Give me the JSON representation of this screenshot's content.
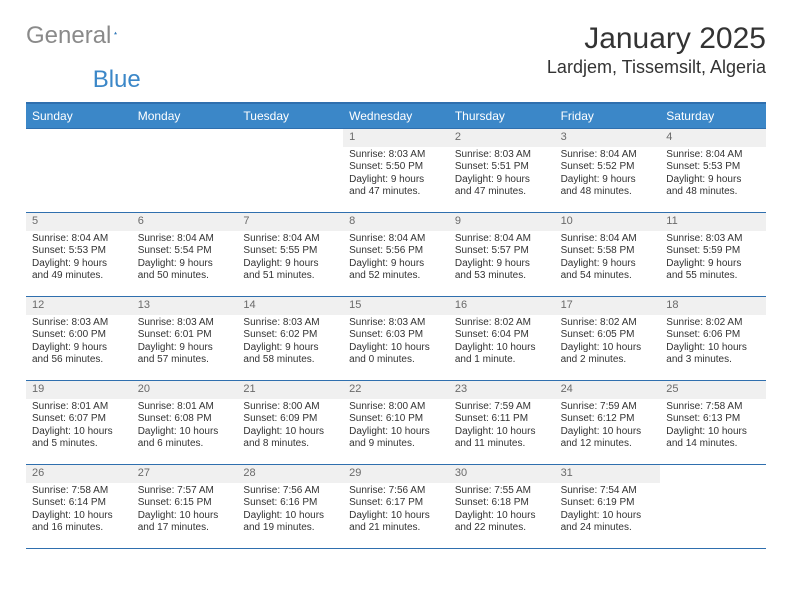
{
  "logo": {
    "word1": "General",
    "word2": "Blue"
  },
  "header": {
    "month": "January 2025",
    "location": "Lardjem, Tissemsilt, Algeria"
  },
  "dayNames": [
    "Sunday",
    "Monday",
    "Tuesday",
    "Wednesday",
    "Thursday",
    "Friday",
    "Saturday"
  ],
  "colors": {
    "header_bg": "#3b87c8",
    "header_text": "#ffffff",
    "rule": "#2f6fae",
    "numrow_bg": "#f0f0f0",
    "numrow_text": "#6a6a6a",
    "body_text": "#333333",
    "page_bg": "#ffffff"
  },
  "typography": {
    "title_fontsize_pt": 22,
    "location_fontsize_pt": 14,
    "dayname_fontsize_pt": 9,
    "cell_fontsize_pt": 7.5
  },
  "layout": {
    "cols": 7,
    "rows": 5,
    "first_day_col_index": 3
  },
  "weeks": [
    [
      {
        "empty": true
      },
      {
        "empty": true
      },
      {
        "empty": true
      },
      {
        "num": "1",
        "sunrise": "Sunrise: 8:03 AM",
        "sunset": "Sunset: 5:50 PM",
        "daylight": "Daylight: 9 hours and 47 minutes."
      },
      {
        "num": "2",
        "sunrise": "Sunrise: 8:03 AM",
        "sunset": "Sunset: 5:51 PM",
        "daylight": "Daylight: 9 hours and 47 minutes."
      },
      {
        "num": "3",
        "sunrise": "Sunrise: 8:04 AM",
        "sunset": "Sunset: 5:52 PM",
        "daylight": "Daylight: 9 hours and 48 minutes."
      },
      {
        "num": "4",
        "sunrise": "Sunrise: 8:04 AM",
        "sunset": "Sunset: 5:53 PM",
        "daylight": "Daylight: 9 hours and 48 minutes."
      }
    ],
    [
      {
        "num": "5",
        "sunrise": "Sunrise: 8:04 AM",
        "sunset": "Sunset: 5:53 PM",
        "daylight": "Daylight: 9 hours and 49 minutes."
      },
      {
        "num": "6",
        "sunrise": "Sunrise: 8:04 AM",
        "sunset": "Sunset: 5:54 PM",
        "daylight": "Daylight: 9 hours and 50 minutes."
      },
      {
        "num": "7",
        "sunrise": "Sunrise: 8:04 AM",
        "sunset": "Sunset: 5:55 PM",
        "daylight": "Daylight: 9 hours and 51 minutes."
      },
      {
        "num": "8",
        "sunrise": "Sunrise: 8:04 AM",
        "sunset": "Sunset: 5:56 PM",
        "daylight": "Daylight: 9 hours and 52 minutes."
      },
      {
        "num": "9",
        "sunrise": "Sunrise: 8:04 AM",
        "sunset": "Sunset: 5:57 PM",
        "daylight": "Daylight: 9 hours and 53 minutes."
      },
      {
        "num": "10",
        "sunrise": "Sunrise: 8:04 AM",
        "sunset": "Sunset: 5:58 PM",
        "daylight": "Daylight: 9 hours and 54 minutes."
      },
      {
        "num": "11",
        "sunrise": "Sunrise: 8:03 AM",
        "sunset": "Sunset: 5:59 PM",
        "daylight": "Daylight: 9 hours and 55 minutes."
      }
    ],
    [
      {
        "num": "12",
        "sunrise": "Sunrise: 8:03 AM",
        "sunset": "Sunset: 6:00 PM",
        "daylight": "Daylight: 9 hours and 56 minutes."
      },
      {
        "num": "13",
        "sunrise": "Sunrise: 8:03 AM",
        "sunset": "Sunset: 6:01 PM",
        "daylight": "Daylight: 9 hours and 57 minutes."
      },
      {
        "num": "14",
        "sunrise": "Sunrise: 8:03 AM",
        "sunset": "Sunset: 6:02 PM",
        "daylight": "Daylight: 9 hours and 58 minutes."
      },
      {
        "num": "15",
        "sunrise": "Sunrise: 8:03 AM",
        "sunset": "Sunset: 6:03 PM",
        "daylight": "Daylight: 10 hours and 0 minutes."
      },
      {
        "num": "16",
        "sunrise": "Sunrise: 8:02 AM",
        "sunset": "Sunset: 6:04 PM",
        "daylight": "Daylight: 10 hours and 1 minute."
      },
      {
        "num": "17",
        "sunrise": "Sunrise: 8:02 AM",
        "sunset": "Sunset: 6:05 PM",
        "daylight": "Daylight: 10 hours and 2 minutes."
      },
      {
        "num": "18",
        "sunrise": "Sunrise: 8:02 AM",
        "sunset": "Sunset: 6:06 PM",
        "daylight": "Daylight: 10 hours and 3 minutes."
      }
    ],
    [
      {
        "num": "19",
        "sunrise": "Sunrise: 8:01 AM",
        "sunset": "Sunset: 6:07 PM",
        "daylight": "Daylight: 10 hours and 5 minutes."
      },
      {
        "num": "20",
        "sunrise": "Sunrise: 8:01 AM",
        "sunset": "Sunset: 6:08 PM",
        "daylight": "Daylight: 10 hours and 6 minutes."
      },
      {
        "num": "21",
        "sunrise": "Sunrise: 8:00 AM",
        "sunset": "Sunset: 6:09 PM",
        "daylight": "Daylight: 10 hours and 8 minutes."
      },
      {
        "num": "22",
        "sunrise": "Sunrise: 8:00 AM",
        "sunset": "Sunset: 6:10 PM",
        "daylight": "Daylight: 10 hours and 9 minutes."
      },
      {
        "num": "23",
        "sunrise": "Sunrise: 7:59 AM",
        "sunset": "Sunset: 6:11 PM",
        "daylight": "Daylight: 10 hours and 11 minutes."
      },
      {
        "num": "24",
        "sunrise": "Sunrise: 7:59 AM",
        "sunset": "Sunset: 6:12 PM",
        "daylight": "Daylight: 10 hours and 12 minutes."
      },
      {
        "num": "25",
        "sunrise": "Sunrise: 7:58 AM",
        "sunset": "Sunset: 6:13 PM",
        "daylight": "Daylight: 10 hours and 14 minutes."
      }
    ],
    [
      {
        "num": "26",
        "sunrise": "Sunrise: 7:58 AM",
        "sunset": "Sunset: 6:14 PM",
        "daylight": "Daylight: 10 hours and 16 minutes."
      },
      {
        "num": "27",
        "sunrise": "Sunrise: 7:57 AM",
        "sunset": "Sunset: 6:15 PM",
        "daylight": "Daylight: 10 hours and 17 minutes."
      },
      {
        "num": "28",
        "sunrise": "Sunrise: 7:56 AM",
        "sunset": "Sunset: 6:16 PM",
        "daylight": "Daylight: 10 hours and 19 minutes."
      },
      {
        "num": "29",
        "sunrise": "Sunrise: 7:56 AM",
        "sunset": "Sunset: 6:17 PM",
        "daylight": "Daylight: 10 hours and 21 minutes."
      },
      {
        "num": "30",
        "sunrise": "Sunrise: 7:55 AM",
        "sunset": "Sunset: 6:18 PM",
        "daylight": "Daylight: 10 hours and 22 minutes."
      },
      {
        "num": "31",
        "sunrise": "Sunrise: 7:54 AM",
        "sunset": "Sunset: 6:19 PM",
        "daylight": "Daylight: 10 hours and 24 minutes."
      },
      {
        "empty": true
      }
    ]
  ]
}
